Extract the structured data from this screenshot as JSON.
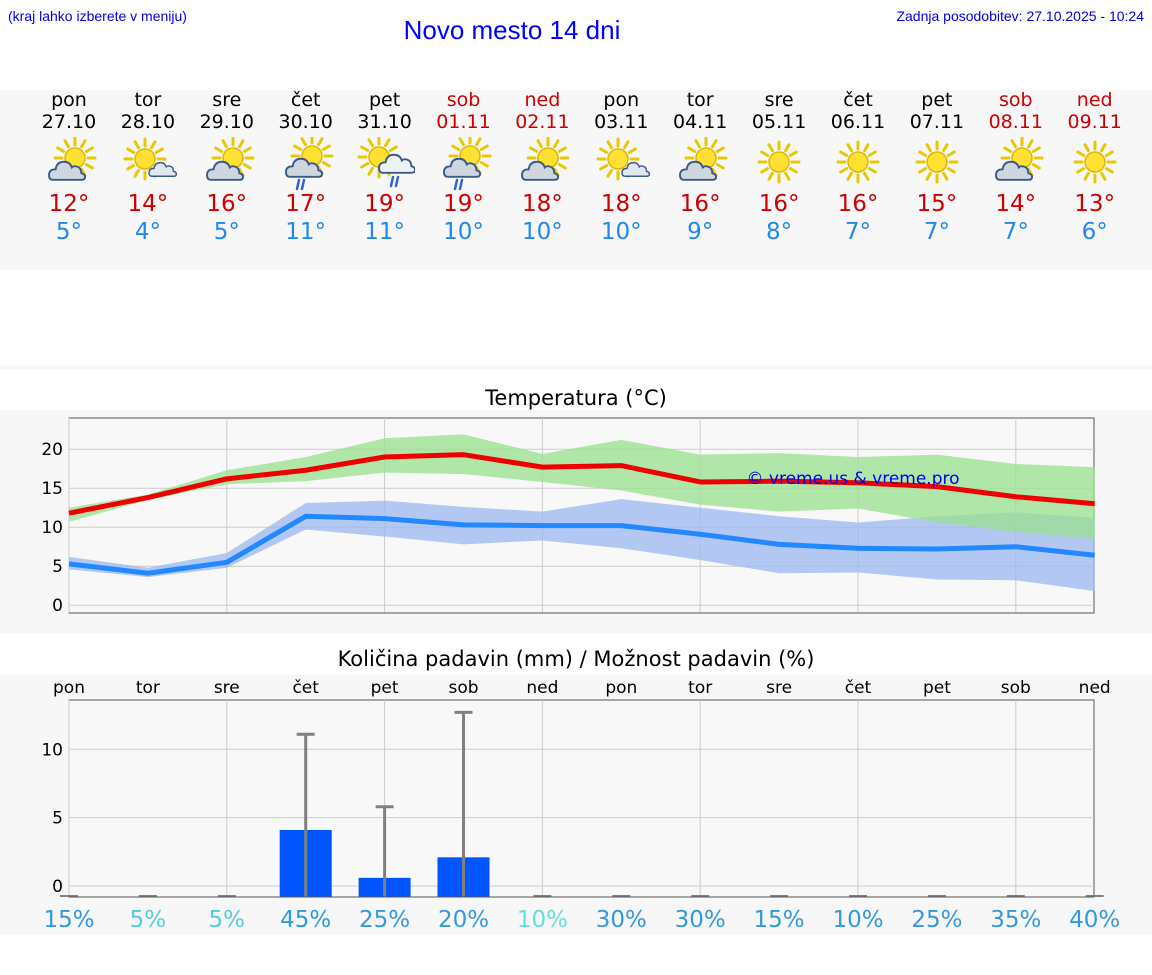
{
  "header": {
    "hint": "(kraj lahko izberete v meniju)",
    "title": "Novo mesto 14 dni",
    "updated": "Zadnja posodobitev: 27.10.2025 - 10:24"
  },
  "days": [
    {
      "name": "pon",
      "date": "27.10",
      "icon": "sun-cloud-icon",
      "max": "12°",
      "min": "5°",
      "weekend": false
    },
    {
      "name": "tor",
      "date": "28.10",
      "icon": "sun-small-cloud-icon",
      "max": "14°",
      "min": "4°",
      "weekend": false
    },
    {
      "name": "sre",
      "date": "29.10",
      "icon": "sun-cloud-icon",
      "max": "16°",
      "min": "5°",
      "weekend": false
    },
    {
      "name": "čet",
      "date": "30.10",
      "icon": "sun-cloud-rain-icon",
      "max": "17°",
      "min": "11°",
      "weekend": false
    },
    {
      "name": "pet",
      "date": "31.10",
      "icon": "cloud-sun-rain-icon",
      "max": "19°",
      "min": "11°",
      "weekend": false
    },
    {
      "name": "sob",
      "date": "01.11",
      "icon": "sun-cloud-rain-icon",
      "max": "19°",
      "min": "10°",
      "weekend": true
    },
    {
      "name": "ned",
      "date": "02.11",
      "icon": "sun-cloud-icon",
      "max": "18°",
      "min": "10°",
      "weekend": true
    },
    {
      "name": "pon",
      "date": "03.11",
      "icon": "sun-small-cloud-icon",
      "max": "18°",
      "min": "10°",
      "weekend": false
    },
    {
      "name": "tor",
      "date": "04.11",
      "icon": "sun-cloud-icon",
      "max": "16°",
      "min": "9°",
      "weekend": false
    },
    {
      "name": "sre",
      "date": "05.11",
      "icon": "sun-icon",
      "max": "16°",
      "min": "8°",
      "weekend": false
    },
    {
      "name": "čet",
      "date": "06.11",
      "icon": "sun-icon",
      "max": "16°",
      "min": "7°",
      "weekend": false
    },
    {
      "name": "pet",
      "date": "07.11",
      "icon": "sun-icon",
      "max": "15°",
      "min": "7°",
      "weekend": false
    },
    {
      "name": "sob",
      "date": "08.11",
      "icon": "sun-cloud-icon",
      "max": "14°",
      "min": "7°",
      "weekend": true
    },
    {
      "name": "ned",
      "date": "09.11",
      "icon": "sun-icon",
      "max": "13°",
      "min": "6°",
      "weekend": true
    }
  ],
  "chart_data": [
    {
      "type": "line",
      "title": "Temperatura (°C)",
      "watermark": "© vreme.us & vreme.pro",
      "yticks": [
        0,
        5,
        10,
        15,
        20
      ],
      "ylim": [
        -1,
        24
      ],
      "grid": true,
      "x": [
        0,
        1,
        2,
        3,
        4,
        5,
        6,
        7,
        8,
        9,
        10,
        11,
        12,
        13
      ],
      "series": [
        {
          "values": [
            11.8,
            13.8,
            16.2,
            17.3,
            19.0,
            19.3,
            17.7,
            17.9,
            15.8,
            15.9,
            15.7,
            15.2,
            13.9,
            13.0
          ],
          "color": "#ee0000"
        },
        {
          "values": [
            5.3,
            4.1,
            5.5,
            11.4,
            11.1,
            10.3,
            10.2,
            10.2,
            9.1,
            7.8,
            7.3,
            7.2,
            7.5,
            6.4
          ],
          "color": "#2288ff"
        }
      ],
      "max_band_high": [
        12.5,
        14.2,
        17.3,
        19.0,
        21.4,
        21.9,
        19.4,
        21.2,
        19.3,
        19.5,
        19.0,
        19.3,
        18.1,
        17.7
      ],
      "max_band_low": [
        10.7,
        13.5,
        15.5,
        15.9,
        17.0,
        16.8,
        15.8,
        14.7,
        12.9,
        12.0,
        12.4,
        10.6,
        9.4,
        8.5
      ],
      "min_band_high": [
        6.2,
        4.8,
        6.7,
        13.1,
        13.4,
        12.6,
        12.0,
        13.6,
        12.5,
        11.4,
        10.6,
        11.4,
        11.9,
        11.2
      ],
      "min_band_low": [
        4.6,
        3.6,
        4.8,
        9.7,
        8.8,
        7.8,
        8.3,
        7.3,
        5.8,
        4.1,
        4.2,
        3.3,
        3.2,
        1.8
      ],
      "band_colors": {
        "max": "#99e08f",
        "min": "#9bb8f0"
      }
    },
    {
      "type": "bar",
      "title": "Količina padavin (mm) / Možnost padavin (%)",
      "categories": [
        "pon",
        "tor",
        "sre",
        "čet",
        "pet",
        "sob",
        "ned",
        "pon",
        "tor",
        "sre",
        "čet",
        "pet",
        "sob",
        "ned"
      ],
      "values": [
        0,
        0,
        0,
        4.1,
        0.6,
        2.1,
        0,
        0,
        0,
        0,
        0,
        0,
        0,
        0
      ],
      "error_max": [
        0,
        0,
        0,
        11.1,
        5.8,
        12.7,
        0,
        0,
        0,
        0,
        0,
        0,
        0,
        0
      ],
      "probability": [
        "15%",
        "5%",
        "5%",
        "45%",
        "25%",
        "20%",
        "10%",
        "30%",
        "30%",
        "15%",
        "10%",
        "25%",
        "35%",
        "40%"
      ],
      "prob_colors": [
        "#3399dd",
        "#55ccdd",
        "#55ccdd",
        "#3399dd",
        "#3399dd",
        "#3399dd",
        "#66dddd",
        "#3399dd",
        "#3399dd",
        "#3399dd",
        "#3399dd",
        "#3399dd",
        "#3399dd",
        "#3399dd"
      ],
      "yticks": [
        0,
        5,
        10
      ],
      "ylim": [
        -0.8,
        13.6
      ],
      "bar_color": "#0055ff",
      "grid": true
    }
  ]
}
